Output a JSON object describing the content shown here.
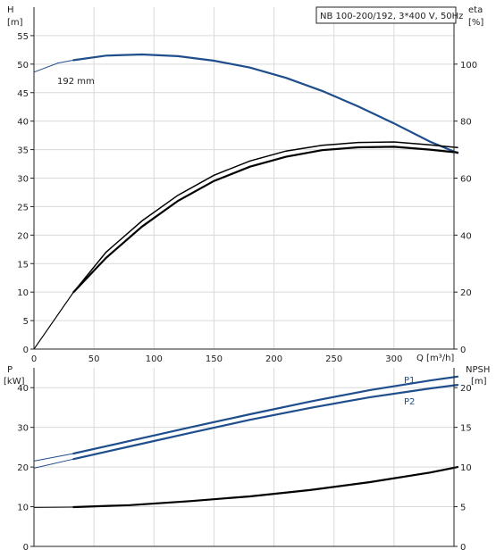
{
  "chart_data": [
    {
      "type": "line",
      "legend_box": "NB 100-200/192, 3*400 V, 50Hz",
      "xlabel": "Q [m³/h]",
      "x_ticks": [
        "0",
        "50",
        "100",
        "150",
        "200",
        "250",
        "300"
      ],
      "xlim": [
        0,
        350
      ],
      "left_axis": {
        "label_top": "H",
        "label_unit": "[m]",
        "ticks": [
          "0",
          "5",
          "10",
          "15",
          "20",
          "25",
          "30",
          "35",
          "40",
          "45",
          "50",
          "55"
        ],
        "ylim": [
          0,
          60
        ]
      },
      "right_axis": {
        "label_top": "eta",
        "label_unit": "[%]",
        "ticks": [
          "0",
          "20",
          "40",
          "60",
          "80",
          "100"
        ],
        "ylim": [
          0,
          120
        ]
      },
      "grid": true,
      "curve_label": "192 mm",
      "series": [
        {
          "name": "",
          "axis": "left",
          "color": "#1f4e8c",
          "x": [
            0,
            20,
            33,
            60,
            90,
            120,
            150,
            180,
            210,
            240,
            270,
            300,
            330,
            353
          ],
          "y": [
            48.6,
            50.2,
            50.7,
            51.5,
            51.7,
            51.4,
            50.6,
            49.4,
            47.6,
            45.3,
            42.6,
            39.6,
            36.4,
            34.4
          ]
        },
        {
          "name": "",
          "axis": "right",
          "color": "#000000",
          "x": [
            0,
            33,
            60,
            90,
            120,
            150,
            180,
            210,
            240,
            270,
            300,
            330,
            353
          ],
          "y": [
            0,
            20,
            32,
            43,
            52,
            59,
            64,
            67.5,
            69.8,
            70.8,
            71,
            70,
            69
          ]
        },
        {
          "name": "",
          "axis": "right",
          "color": "#000000",
          "x": [
            0,
            33,
            60,
            90,
            120,
            150,
            180,
            210,
            240,
            270,
            300,
            330,
            353
          ],
          "y": [
            0,
            20,
            34,
            45,
            54,
            61,
            66,
            69.5,
            71.5,
            72.5,
            72.7,
            71.7,
            70.7
          ]
        }
      ]
    },
    {
      "type": "line",
      "xlim": [
        0,
        350
      ],
      "left_axis": {
        "label_top": "P",
        "label_unit": "[kW]",
        "ticks": [
          "0",
          "10",
          "20",
          "30",
          "40"
        ],
        "ylim": [
          0,
          45
        ]
      },
      "right_axis": {
        "label_top": "NPSH",
        "label_unit": "[m]",
        "ticks": [
          "0",
          "5",
          "10",
          "15",
          "20"
        ],
        "ylim": [
          0,
          22.5
        ]
      },
      "grid": true,
      "series": [
        {
          "name": "P1",
          "axis": "left",
          "color": "#1f4e8c",
          "x": [
            0,
            33,
            80,
            130,
            180,
            230,
            280,
            330,
            353
          ],
          "y": [
            21.5,
            23.4,
            26.6,
            30,
            33.3,
            36.5,
            39.4,
            41.8,
            42.8
          ]
        },
        {
          "name": "P2",
          "axis": "left",
          "color": "#1f4e8c",
          "x": [
            0,
            33,
            80,
            130,
            180,
            230,
            280,
            330,
            353
          ],
          "y": [
            19.7,
            22,
            25.2,
            28.6,
            31.9,
            34.9,
            37.6,
            39.8,
            40.7
          ]
        },
        {
          "name": "",
          "axis": "right",
          "color": "#000000",
          "x": [
            0,
            33,
            80,
            130,
            180,
            230,
            280,
            330,
            353
          ],
          "y": [
            4.9,
            4.95,
            5.2,
            5.7,
            6.3,
            7.1,
            8.1,
            9.3,
            10.0
          ]
        }
      ]
    }
  ]
}
